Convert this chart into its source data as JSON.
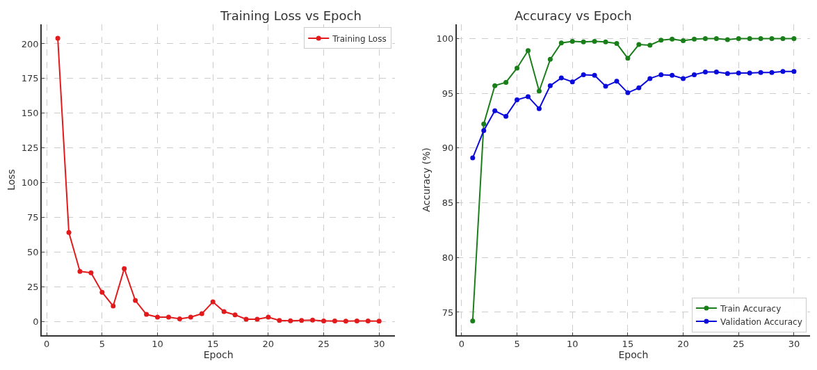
{
  "chart_data": [
    {
      "type": "line",
      "title": "Training Loss vs Epoch",
      "xlabel": "Epoch",
      "ylabel": "Loss",
      "x": [
        1,
        2,
        3,
        4,
        5,
        6,
        7,
        8,
        9,
        10,
        11,
        12,
        13,
        14,
        15,
        16,
        17,
        18,
        19,
        20,
        21,
        22,
        23,
        24,
        25,
        26,
        27,
        28,
        29,
        30
      ],
      "series": [
        {
          "name": "Training Loss",
          "color": "#e31a1c",
          "values": [
            204,
            64,
            36,
            35,
            21,
            11,
            38,
            15,
            5,
            3,
            3,
            1.8,
            3,
            5.5,
            14,
            7,
            4.7,
            1.5,
            1.5,
            3,
            0.7,
            0.4,
            0.6,
            0.9,
            0.3,
            0.3,
            0.2,
            0.3,
            0.3,
            0.2
          ]
        }
      ],
      "xlim": [
        -0.45,
        31.45
      ],
      "xticks": [
        0,
        5,
        10,
        15,
        20,
        25,
        30
      ],
      "ylim": [
        -10,
        214
      ],
      "yticks": [
        0,
        25,
        50,
        75,
        100,
        125,
        150,
        175,
        200
      ],
      "grid": true,
      "legend": "top right",
      "marker": "circle",
      "line_style": "solid"
    },
    {
      "type": "line",
      "title": "Accuracy vs Epoch",
      "xlabel": "Epoch",
      "ylabel": "Accuracy (%)",
      "x": [
        1,
        2,
        3,
        4,
        5,
        6,
        7,
        8,
        9,
        10,
        11,
        12,
        13,
        14,
        15,
        16,
        17,
        18,
        19,
        20,
        21,
        22,
        23,
        24,
        25,
        26,
        27,
        28,
        29,
        30
      ],
      "series": [
        {
          "name": "Train Accuracy",
          "color": "#1a7f1a",
          "values": [
            74.2,
            92.2,
            95.7,
            96.0,
            97.3,
            98.9,
            95.2,
            98.1,
            99.6,
            99.75,
            99.7,
            99.75,
            99.7,
            99.55,
            98.2,
            99.45,
            99.4,
            99.85,
            99.95,
            99.8,
            99.95,
            100,
            100,
            99.9,
            100,
            100,
            100,
            100,
            100,
            100
          ]
        },
        {
          "name": "Validation Accuracy",
          "color": "#0a0adb",
          "values": [
            89.1,
            91.6,
            93.4,
            92.9,
            94.4,
            94.7,
            93.6,
            95.7,
            96.4,
            96.05,
            96.7,
            96.65,
            95.65,
            96.1,
            95.05,
            95.5,
            96.35,
            96.7,
            96.65,
            96.35,
            96.7,
            96.95,
            96.95,
            96.8,
            96.85,
            96.85,
            96.9,
            96.9,
            97.0,
            97.0
          ]
        }
      ],
      "xlim": [
        -0.45,
        31.45
      ],
      "xticks": [
        0,
        5,
        10,
        15,
        20,
        25,
        30
      ],
      "ylim": [
        72.9,
        101.3
      ],
      "yticks": [
        75,
        80,
        85,
        90,
        95,
        100
      ],
      "grid": true,
      "legend": "bottom right",
      "marker": "circle",
      "line_style": "solid"
    }
  ]
}
